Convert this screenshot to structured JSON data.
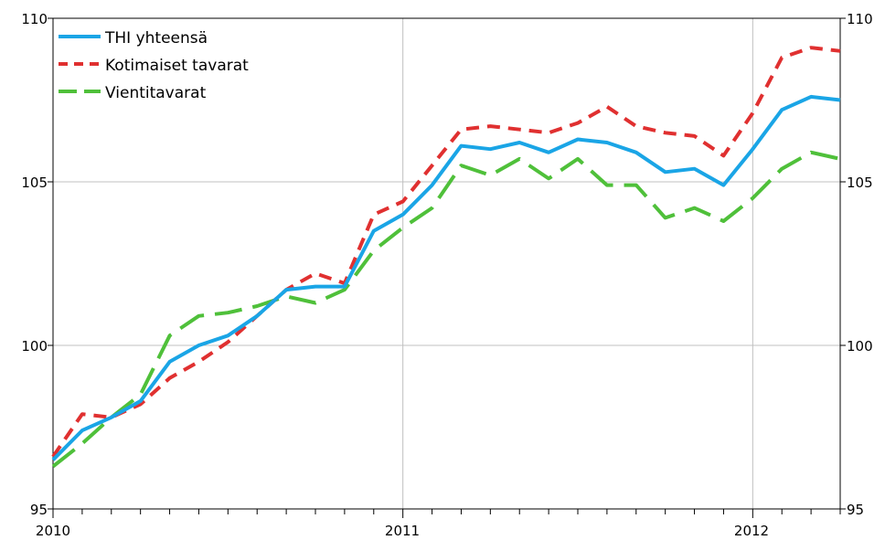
{
  "chart_data": {
    "type": "line",
    "title": "",
    "xlabel": "",
    "ylabel": "",
    "ylim": [
      95,
      110
    ],
    "y_ticks": [
      "95",
      "100",
      "105",
      "110"
    ],
    "x_tick_labels": [
      {
        "label": "2010",
        "month_index": 0
      },
      {
        "label": "2011",
        "month_index": 12
      },
      {
        "label": "2012",
        "month_index": 24
      }
    ],
    "x_range_months": [
      0,
      27
    ],
    "grid": true,
    "legend_position": "top-left",
    "series": [
      {
        "name": "THI yhteensä",
        "color": "#1aa5e6",
        "dash": "solid",
        "values": [
          96.5,
          97.4,
          97.8,
          98.3,
          99.5,
          100.0,
          100.3,
          100.9,
          101.7,
          101.8,
          101.8,
          103.5,
          104.0,
          104.9,
          106.1,
          106.0,
          106.2,
          105.9,
          106.3,
          106.2,
          105.9,
          105.3,
          105.4,
          104.9,
          106.0,
          107.2,
          107.6,
          107.5
        ]
      },
      {
        "name": "Kotimaiset tavarat",
        "color": "#e03030",
        "dash": "dashed",
        "values": [
          96.6,
          97.9,
          97.8,
          98.2,
          99.0,
          99.5,
          100.1,
          100.9,
          101.7,
          102.2,
          101.9,
          104.0,
          104.4,
          105.5,
          106.6,
          106.7,
          106.6,
          106.5,
          106.8,
          107.3,
          106.7,
          106.5,
          106.4,
          105.8,
          107.1,
          108.8,
          109.1,
          109.0
        ]
      },
      {
        "name": "Vientitavarat",
        "color": "#4fc03a",
        "dash": "long-dashed",
        "values": [
          96.3,
          97.0,
          97.8,
          98.5,
          100.3,
          100.9,
          101.0,
          101.2,
          101.5,
          101.3,
          101.7,
          102.9,
          103.6,
          104.2,
          105.5,
          105.2,
          105.7,
          105.1,
          105.7,
          104.9,
          104.9,
          103.9,
          104.2,
          103.8,
          104.5,
          105.4,
          105.9,
          105.7
        ]
      }
    ]
  }
}
